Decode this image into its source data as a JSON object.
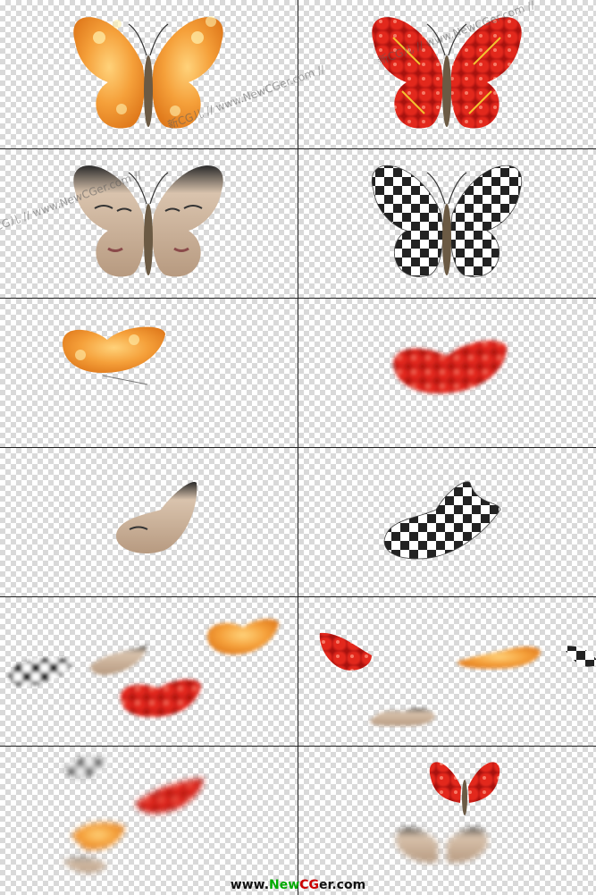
{
  "watermark_text": "新CG儿 // www.NewCGer.com //",
  "logo": {
    "prefix": "www.",
    "n": "New",
    "c": "CG",
    "rest": "er.com"
  },
  "panels": [
    {
      "id": "orange-spread"
    },
    {
      "id": "red-spread"
    },
    {
      "id": "face-spread"
    },
    {
      "id": "checker-spread"
    },
    {
      "id": "orange-flap"
    },
    {
      "id": "red-flap"
    },
    {
      "id": "face-flap"
    },
    {
      "id": "checker-flap"
    },
    {
      "id": "group-1"
    },
    {
      "id": "group-2"
    },
    {
      "id": "group-3"
    },
    {
      "id": "group-4"
    }
  ]
}
